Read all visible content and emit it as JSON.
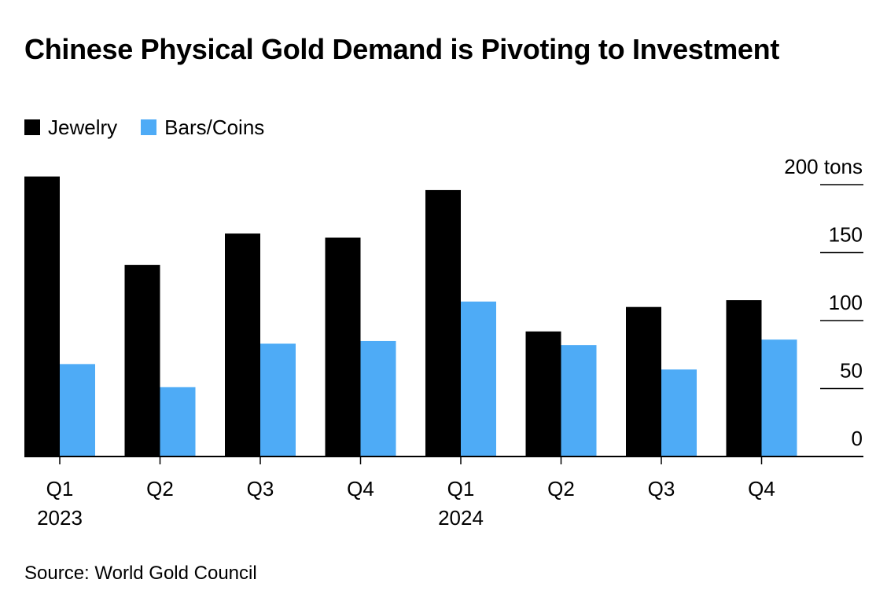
{
  "title": "Chinese Physical Gold Demand is Pivoting to Investment",
  "source": "Source: World Gold Council",
  "colors": {
    "jewelry": "#000000",
    "bars_coins": "#4eabf6",
    "axis": "#000000"
  },
  "chart_data": {
    "type": "bar",
    "title": "Chinese Physical Gold Demand is Pivoting to Investment",
    "categories": [
      "Q1",
      "Q2",
      "Q3",
      "Q4",
      "Q1",
      "Q2",
      "Q3",
      "Q4"
    ],
    "year_labels": [
      "2023",
      "",
      "",
      "",
      "2024",
      "",
      "",
      ""
    ],
    "series": [
      {
        "name": "Jewelry",
        "values": [
          206,
          141,
          164,
          161,
          196,
          92,
          110,
          115
        ]
      },
      {
        "name": "Bars/Coins",
        "values": [
          68,
          51,
          83,
          85,
          114,
          82,
          64,
          86
        ]
      }
    ],
    "yticks": [
      {
        "value": 0,
        "label": "0"
      },
      {
        "value": 50,
        "label": "50"
      },
      {
        "value": 100,
        "label": "100"
      },
      {
        "value": 150,
        "label": "150"
      },
      {
        "value": 200,
        "label": "200 tons"
      }
    ],
    "ylim": [
      0,
      200
    ],
    "y_axis_position": "right",
    "grid": false,
    "legend_placement": "top-left"
  }
}
